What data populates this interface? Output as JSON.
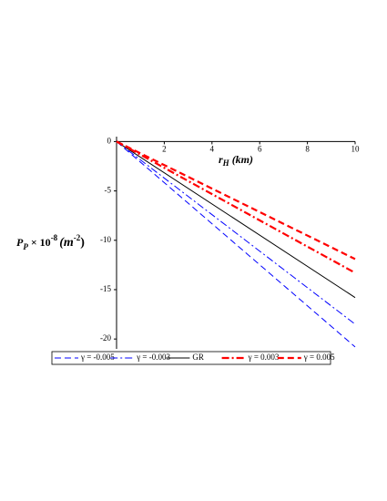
{
  "chart_data": {
    "type": "line",
    "xlabel": {
      "main": "r",
      "sub": "H",
      "rest": " (km)"
    },
    "ylabel": {
      "main": "P",
      "sub": "P",
      "mid": " × 10",
      "sup": "-8",
      "unit": "(m",
      "unitsup": "-2",
      "close": ")"
    },
    "x": [
      0,
      10
    ],
    "xlim": [
      0,
      10
    ],
    "xticks": [
      2,
      4,
      6,
      8,
      10
    ],
    "ylim": [
      -21,
      0.5
    ],
    "yticks": [
      -20,
      -15,
      -10,
      -5,
      0
    ],
    "legend": "bottom",
    "series": [
      {
        "name": "γ = -0.005",
        "color": "#0000ff",
        "style": "dashed",
        "width": 1,
        "values": [
          0,
          -20.8
        ]
      },
      {
        "name": "γ = -0.003",
        "color": "#0000ff",
        "style": "dashdot",
        "width": 1,
        "values": [
          0,
          -18.5
        ]
      },
      {
        "name": "GR",
        "color": "#000000",
        "style": "solid",
        "width": 1,
        "values": [
          0,
          -15.8
        ]
      },
      {
        "name": "γ = 0.003",
        "color": "#ff0000",
        "style": "dashdot",
        "width": 2.2,
        "values": [
          0,
          -13.3
        ]
      },
      {
        "name": "γ = 0.005",
        "color": "#ff0000",
        "style": "dashed",
        "width": 2.2,
        "values": [
          0,
          -11.9
        ]
      }
    ]
  }
}
